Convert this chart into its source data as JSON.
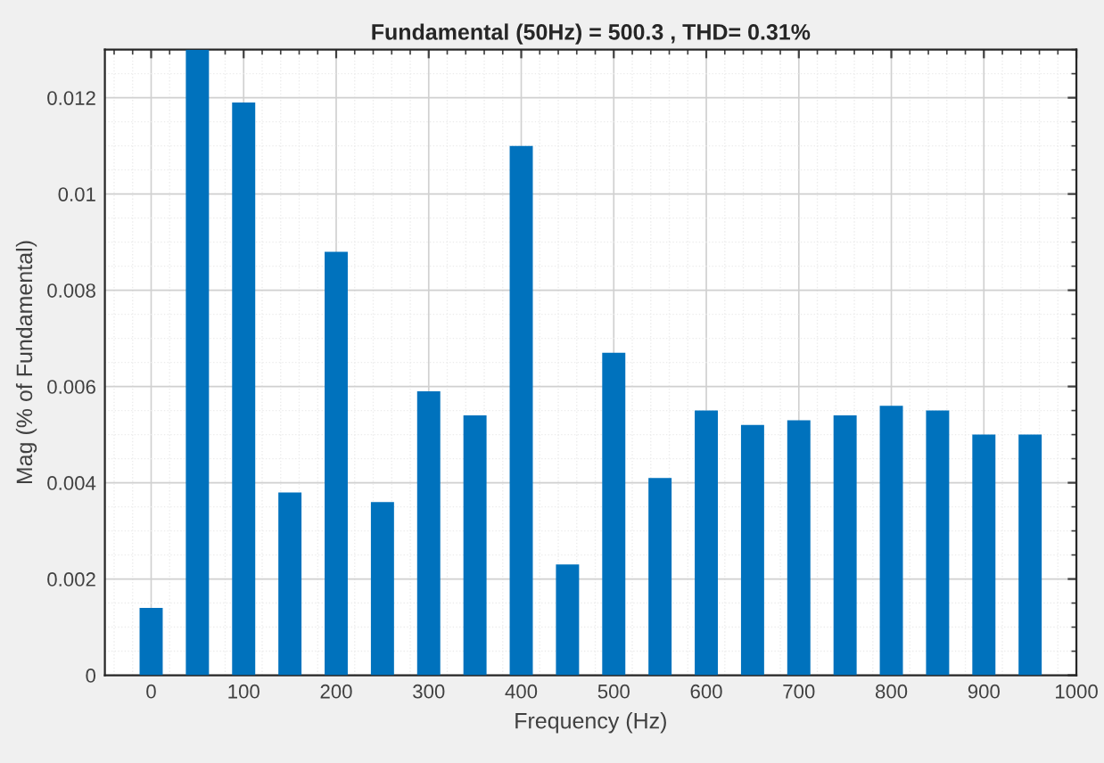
{
  "chart_data": {
    "type": "bar",
    "title": "Fundamental (50Hz) = 500.3 , THD= 0.31%",
    "xlabel": "Frequency (Hz)",
    "ylabel": "Mag (% of Fundamental)",
    "x": [
      0,
      50,
      100,
      150,
      200,
      250,
      300,
      350,
      400,
      450,
      500,
      550,
      600,
      650,
      700,
      750,
      800,
      850,
      900,
      950
    ],
    "series": [
      {
        "color": "#0072bd",
        "values": [
          0.0014,
          0.013,
          0.0119,
          0.0038,
          0.0088,
          0.0036,
          0.0059,
          0.0054,
          0.011,
          0.0023,
          0.0067,
          0.0041,
          0.0055,
          0.0052,
          0.0053,
          0.0054,
          0.0056,
          0.0055,
          0.005,
          0.005
        ]
      }
    ],
    "xlim": [
      -50,
      1000
    ],
    "xticks": [
      0,
      100,
      200,
      300,
      400,
      500,
      600,
      700,
      800,
      900,
      1000
    ],
    "ylim": [
      0,
      0.013
    ],
    "yticks": [
      0,
      0.002,
      0.004,
      0.006,
      0.008,
      0.01,
      0.012
    ],
    "grid": true
  }
}
